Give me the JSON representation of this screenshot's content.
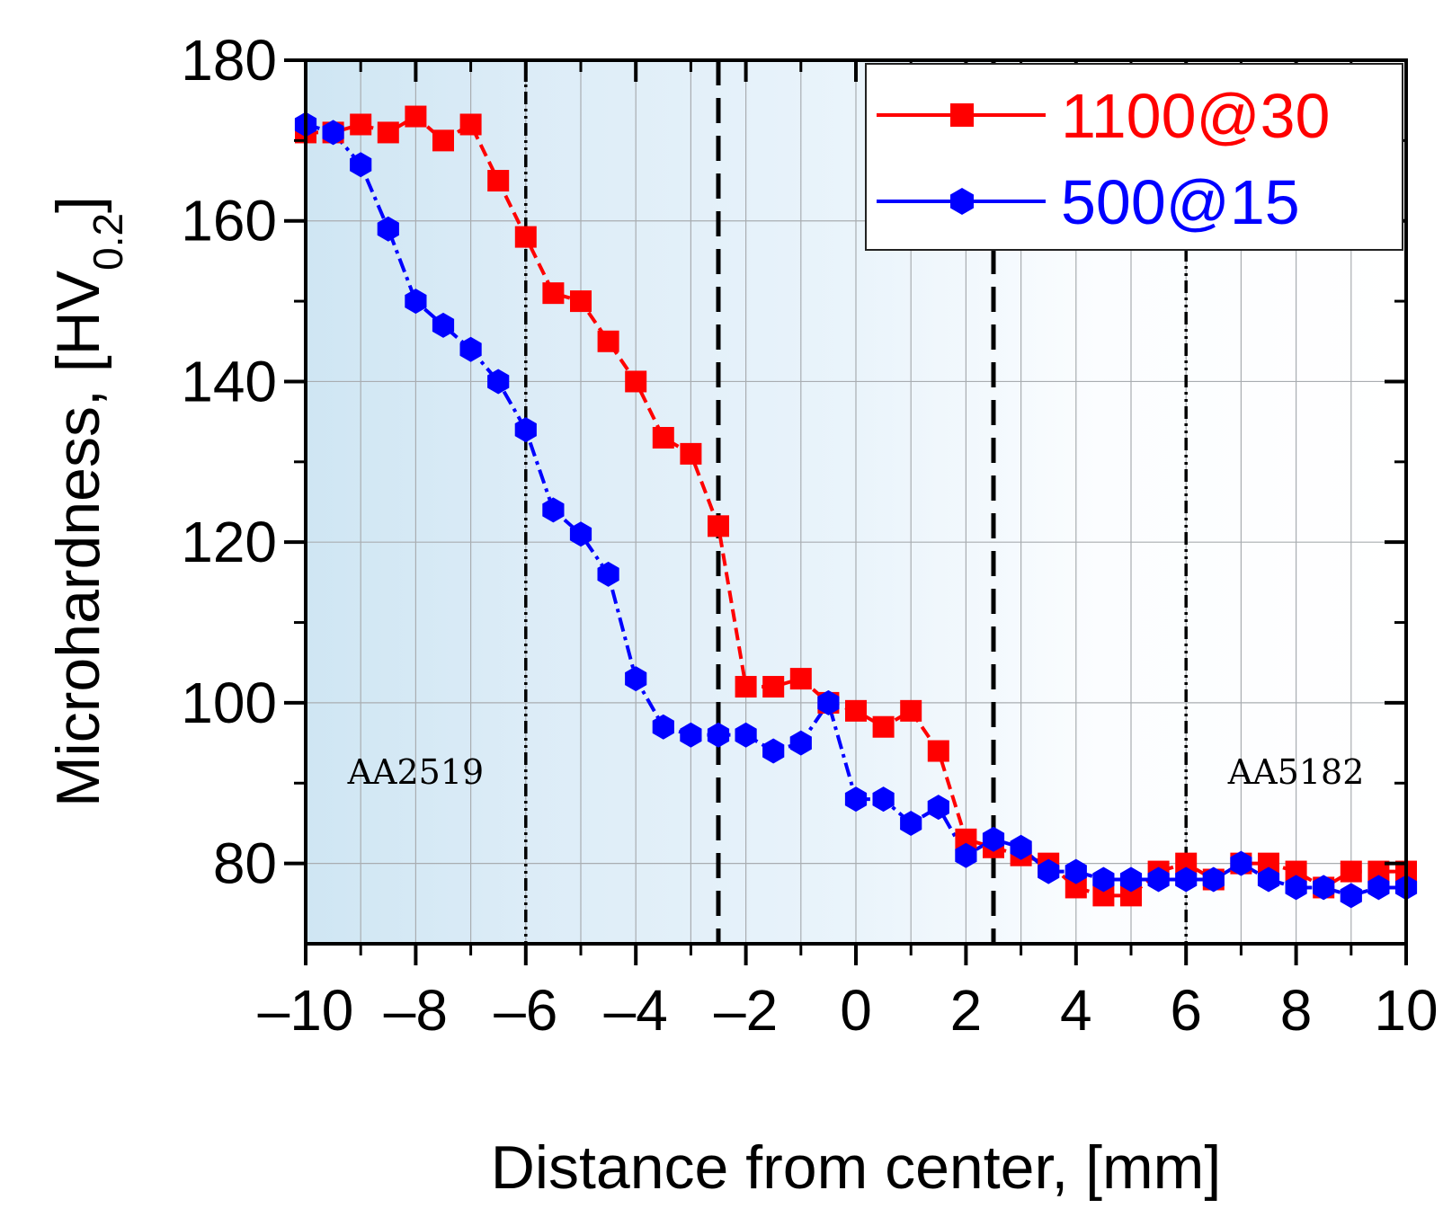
{
  "chart_data": {
    "type": "line",
    "xlabel": "Distance from center, [mm]",
    "ylabel_main": "Microhardness, [HV",
    "ylabel_sub": "0.2",
    "ylabel_close": "]",
    "xlim": [
      -10,
      10
    ],
    "ylim": [
      70,
      180
    ],
    "x_ticks": [
      -10,
      -8,
      -6,
      -4,
      -2,
      0,
      2,
      4,
      6,
      8,
      10
    ],
    "x_tick_labels": [
      "–10",
      "–8",
      "–6",
      "–4",
      "–2",
      "0",
      "2",
      "4",
      "6",
      "8",
      "10"
    ],
    "y_ticks": [
      80,
      100,
      120,
      140,
      160,
      180
    ],
    "y_tick_labels": [
      "80",
      "100",
      "120",
      "140",
      "160",
      "180"
    ],
    "grid": true,
    "legend_position": "top-right",
    "vlines": [
      {
        "x": -6,
        "style": "dash-dot"
      },
      {
        "x": -2.5,
        "style": "dashed"
      },
      {
        "x": 2.5,
        "style": "dashed"
      },
      {
        "x": 6,
        "style": "dash-dot"
      }
    ],
    "annotations": [
      {
        "text": "AA2519",
        "x": -8,
        "y": 91
      },
      {
        "text": "AA5182",
        "x": 8,
        "y": 91
      }
    ],
    "series": [
      {
        "name": "1100@30",
        "color": "#ff0000",
        "marker": "square",
        "line": "dashed",
        "x": [
          -10,
          -9.5,
          -9,
          -8.5,
          -8,
          -7.5,
          -7,
          -6.5,
          -6,
          -5.5,
          -5,
          -4.5,
          -4,
          -3.5,
          -3,
          -2.5,
          -2,
          -1.5,
          -1,
          -0.5,
          0,
          0.5,
          1,
          1.5,
          2,
          2.5,
          3,
          3.5,
          4,
          4.5,
          5,
          5.5,
          6,
          6.5,
          7,
          7.5,
          8,
          8.5,
          9,
          9.5,
          10
        ],
        "values": [
          171,
          171,
          172,
          171,
          173,
          170,
          172,
          165,
          158,
          151,
          150,
          145,
          140,
          133,
          131,
          122,
          102,
          102,
          103,
          100,
          99,
          97,
          99,
          94,
          83,
          82,
          81,
          80,
          77,
          76,
          76,
          79,
          80,
          78,
          80,
          80,
          79,
          77,
          79,
          79,
          79
        ]
      },
      {
        "name": "500@15",
        "color": "#0000ff",
        "marker": "hexagon",
        "line": "dash-dot",
        "x": [
          -10,
          -9.5,
          -9,
          -8.5,
          -8,
          -7.5,
          -7,
          -6.5,
          -6,
          -5.5,
          -5,
          -4.5,
          -4,
          -3.5,
          -3,
          -2.5,
          -2,
          -1.5,
          -1,
          -0.5,
          0,
          0.5,
          1,
          1.5,
          2,
          2.5,
          3,
          3.5,
          4,
          4.5,
          5,
          5.5,
          6,
          6.5,
          7,
          7.5,
          8,
          8.5,
          9,
          9.5,
          10
        ],
        "values": [
          172,
          171,
          167,
          159,
          150,
          147,
          144,
          140,
          134,
          124,
          121,
          116,
          103,
          97,
          96,
          96,
          96,
          94,
          95,
          100,
          88,
          88,
          85,
          87,
          81,
          83,
          82,
          79,
          79,
          78,
          78,
          78,
          78,
          78,
          80,
          78,
          77,
          77,
          76,
          77,
          77
        ]
      }
    ]
  }
}
